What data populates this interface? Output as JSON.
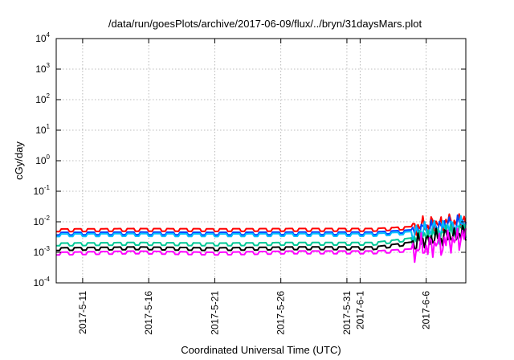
{
  "chart_data": {
    "type": "line",
    "title": "/data/run/goesPlots/archive/2017-06-09/flux/../bryn/31daysMars.plot",
    "xlabel": "Coordinated Universal Time (UTC)",
    "ylabel": "cGy/day",
    "y_scale": "log",
    "ylim": [
      0.0001,
      10000
    ],
    "xlim": [
      "2017-05-09",
      "2017-06-09"
    ],
    "y_ticks": [
      {
        "base": "10",
        "exp": "-4"
      },
      {
        "base": "10",
        "exp": "-3"
      },
      {
        "base": "10",
        "exp": "-2"
      },
      {
        "base": "10",
        "exp": "-1"
      },
      {
        "base": "10",
        "exp": "0"
      },
      {
        "base": "10",
        "exp": "1"
      },
      {
        "base": "10",
        "exp": "2"
      },
      {
        "base": "10",
        "exp": "3"
      },
      {
        "base": "10",
        "exp": "4"
      }
    ],
    "x_ticks": [
      {
        "date": "2017-05-11",
        "label": "2017-5-11"
      },
      {
        "date": "2017-05-16",
        "label": "2017-5-16"
      },
      {
        "date": "2017-05-21",
        "label": "2017-5-21"
      },
      {
        "date": "2017-05-26",
        "label": "2017-5-26"
      },
      {
        "date": "2017-05-31",
        "label": "2017-5-31"
      },
      {
        "date": "2017-06-01",
        "label": "2017-6-1"
      },
      {
        "date": "2017-06-06",
        "label": "2017-6-6"
      }
    ],
    "grid": true,
    "legend": "none",
    "series": [
      {
        "color": "#ff0000",
        "x": [
          "2017-05-09",
          "2017-05-15",
          "2017-05-21",
          "2017-05-27",
          "2017-06-02",
          "2017-06-05",
          "2017-06-07",
          "2017-06-09"
        ],
        "y": [
          0.0058,
          0.006,
          0.0059,
          0.006,
          0.006,
          0.007,
          0.0095,
          0.012
        ]
      },
      {
        "color": "#0044ff",
        "x": [
          "2017-05-09",
          "2017-05-15",
          "2017-05-21",
          "2017-05-27",
          "2017-06-02",
          "2017-06-05",
          "2017-06-07",
          "2017-06-09"
        ],
        "y": [
          0.0045,
          0.0046,
          0.0045,
          0.0046,
          0.0046,
          0.0055,
          0.008,
          0.01
        ]
      },
      {
        "color": "#00bfff",
        "x": [
          "2017-05-09",
          "2017-05-15",
          "2017-05-21",
          "2017-05-27",
          "2017-06-02",
          "2017-06-05",
          "2017-06-07",
          "2017-06-09"
        ],
        "y": [
          0.004,
          0.0041,
          0.004,
          0.0041,
          0.0041,
          0.0048,
          0.0065,
          0.0085
        ]
      },
      {
        "color": "#00c896",
        "x": [
          "2017-05-09",
          "2017-05-15",
          "2017-05-21",
          "2017-05-27",
          "2017-06-02",
          "2017-06-05",
          "2017-06-07",
          "2017-06-09"
        ],
        "y": [
          0.002,
          0.0021,
          0.002,
          0.0021,
          0.0021,
          0.003,
          0.0045,
          0.006
        ]
      },
      {
        "color": "#000000",
        "x": [
          "2017-05-09",
          "2017-05-15",
          "2017-05-21",
          "2017-05-27",
          "2017-06-02",
          "2017-06-05",
          "2017-06-07",
          "2017-06-09"
        ],
        "y": [
          0.0014,
          0.0015,
          0.0014,
          0.0015,
          0.0015,
          0.0022,
          0.0033,
          0.0045
        ]
      },
      {
        "color": "#ff00ff",
        "x": [
          "2017-05-09",
          "2017-05-15",
          "2017-05-21",
          "2017-05-27",
          "2017-06-02",
          "2017-06-05",
          "2017-06-07",
          "2017-06-09"
        ],
        "y": [
          0.001,
          0.0011,
          0.001,
          0.0011,
          0.0011,
          0.0013,
          0.002,
          0.0035
        ]
      }
    ]
  }
}
